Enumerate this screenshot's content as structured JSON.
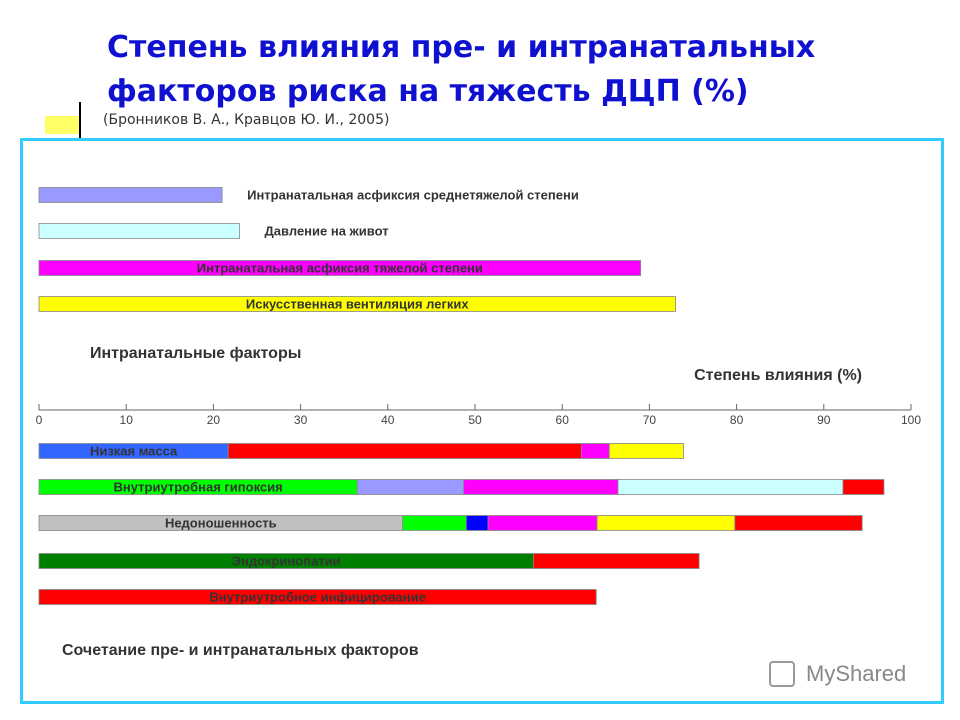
{
  "chart_data": {
    "type": "stacked_bar",
    "title": "Степень влияния пре- и интранатальных факторов риска на тяжесть ДЦП (%)",
    "subtitle": "(Бронников В. А., Кравцов Ю. И., 2005)",
    "xlabel": "Степень влияния (%)",
    "xlim": [
      0,
      100
    ],
    "xticks": [
      0,
      10,
      20,
      30,
      40,
      50,
      60,
      70,
      80,
      90,
      100
    ],
    "watermark": "MyShared",
    "groups": [
      {
        "name": "Интранатальные факторы",
        "bars": [
          {
            "label": "Интранатальная асфиксия среднетяжелой степени",
            "segments": [
              {
                "color": "#9999ff",
                "value": 21
              }
            ]
          },
          {
            "label": "Давление на живот",
            "segments": [
              {
                "color": "#ccffff",
                "value": 23
              }
            ]
          },
          {
            "label": "Интранатальная асфиксия тяжелой степени",
            "segments": [
              {
                "color": "#ff00ff",
                "value": 69
              }
            ]
          },
          {
            "label": "Искусственная вентиляция легких",
            "segments": [
              {
                "color": "#ffff00",
                "value": 73
              }
            ]
          }
        ]
      },
      {
        "name": "Сочетание пре- и интранатальных факторов",
        "bars": [
          {
            "label": "Низкая масса",
            "segments": [
              {
                "color": "#3366ff",
                "value": 21.7
              },
              {
                "color": "#ff0000",
                "value": 40.5
              },
              {
                "color": "#ff00ff",
                "value": 3.2
              },
              {
                "color": "#ffff00",
                "value": 8.5
              }
            ]
          },
          {
            "label": "Внутриутробная гипоксия",
            "segments": [
              {
                "color": "#00ff00",
                "value": 36.5
              },
              {
                "color": "#9999ff",
                "value": 12.2
              },
              {
                "color": "#ff00ff",
                "value": 17.7
              },
              {
                "color": "#ccffff",
                "value": 25.8
              },
              {
                "color": "#ff0000",
                "value": 4.7
              }
            ]
          },
          {
            "label": "Недоношенность",
            "segments": [
              {
                "color": "#c0c0c0",
                "value": 41.7
              },
              {
                "color": "#00ff00",
                "value": 7.3
              },
              {
                "color": "#0000ff",
                "value": 2.5
              },
              {
                "color": "#ff00ff",
                "value": 12.5
              },
              {
                "color": "#ffff00",
                "value": 15.8
              },
              {
                "color": "#ff0000",
                "value": 14.6
              }
            ]
          },
          {
            "label": "Эндокринопатии",
            "segments": [
              {
                "color": "#008000",
                "value": 56.7
              },
              {
                "color": "#ff0000",
                "value": 19
              }
            ]
          },
          {
            "label": "Внутриутробное инфицирование",
            "segments": [
              {
                "color": "#ff0000",
                "value": 63.9
              }
            ]
          }
        ]
      }
    ]
  }
}
